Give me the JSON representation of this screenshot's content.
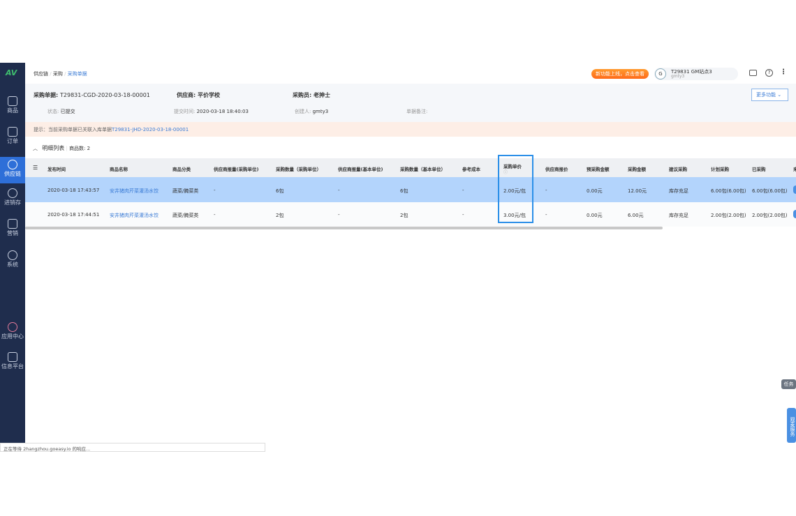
{
  "sidebar": {
    "logo": "AV",
    "items": [
      {
        "label": "商品",
        "icon": "bag-icon"
      },
      {
        "label": "订单",
        "icon": "order-icon"
      },
      {
        "label": "供应链",
        "icon": "swap-icon",
        "active": true
      },
      {
        "label": "进销存",
        "icon": "inventory-icon"
      },
      {
        "label": "营销",
        "icon": "tag-icon"
      },
      {
        "label": "系统",
        "icon": "gear-icon"
      },
      {
        "label": "应用中心",
        "icon": "apps-icon"
      },
      {
        "label": "信息平台",
        "icon": "cube-icon"
      }
    ]
  },
  "breadcrumb": [
    "供应链",
    "采购",
    "采购单据"
  ],
  "topbar": {
    "promo": "新功能上线，点击查看",
    "avatar": "G",
    "station": "T29831 GM站点3",
    "user": "gmty3"
  },
  "header": {
    "doc_label": "采购单据:",
    "doc_no": "T29831-CGD-2020-03-18-00001",
    "supplier_label": "供应商:",
    "supplier": "平价学校",
    "buyer_label": "采购员:",
    "buyer": "老抻士",
    "status_label": "状态:",
    "status": "已提交",
    "submit_label": "提交时间:",
    "submit_time": "2020-03-18 18:40:03",
    "creator_label": "创建人:",
    "creator": "gmty3",
    "remark_label": "单据备注:",
    "more": "更多功能"
  },
  "notice": {
    "text": "提示：当前采购单据已关联入库单据",
    "link": "T29831-JHD-2020-03-18-00001"
  },
  "list": {
    "title": "明细列表",
    "count_label": "商品数: 2"
  },
  "table": {
    "columns": [
      "发布时间",
      "商品名称",
      "商品分类",
      "供应商报量(采购单位)",
      "采购数量（采购单位）",
      "供应商报量(基本单位)",
      "采购数量（基本单位）",
      "参考成本",
      "采购单价",
      "供应商报价",
      "预采购金额",
      "采购金额",
      "建议采购",
      "计划采购",
      "已采购",
      "来"
    ],
    "rows": [
      [
        "2020-03-18 17:43:57",
        "安井猪肉芹菜灌汤水饺",
        "蔬菜/腌菜类",
        "-",
        "6包",
        "-",
        "6包",
        "-",
        "2.00元/包",
        "-",
        "0.00元",
        "12.00元",
        "库存充足",
        "6.00包(6.00包)",
        "6.00包(6.00包)"
      ],
      [
        "2020-03-18 17:44:51",
        "安井猪肉芹菜灌汤水饺",
        "蔬菜/腌菜类",
        "-",
        "2包",
        "-",
        "2包",
        "-",
        "3.00元/包",
        "-",
        "0.00元",
        "6.00元",
        "库存充足",
        "2.00包(2.00包)",
        "2.00包(2.00包)"
      ]
    ],
    "selected_row": 0
  },
  "float": {
    "task": "任务",
    "service": "观麦服务"
  },
  "statusbar": "正在等待 2hangzhou.goeasy.io 的响应...",
  "colors": {
    "accent": "#3a7bd5",
    "sidebar": "#1f2d4d",
    "selected": "#b3d4fc"
  }
}
